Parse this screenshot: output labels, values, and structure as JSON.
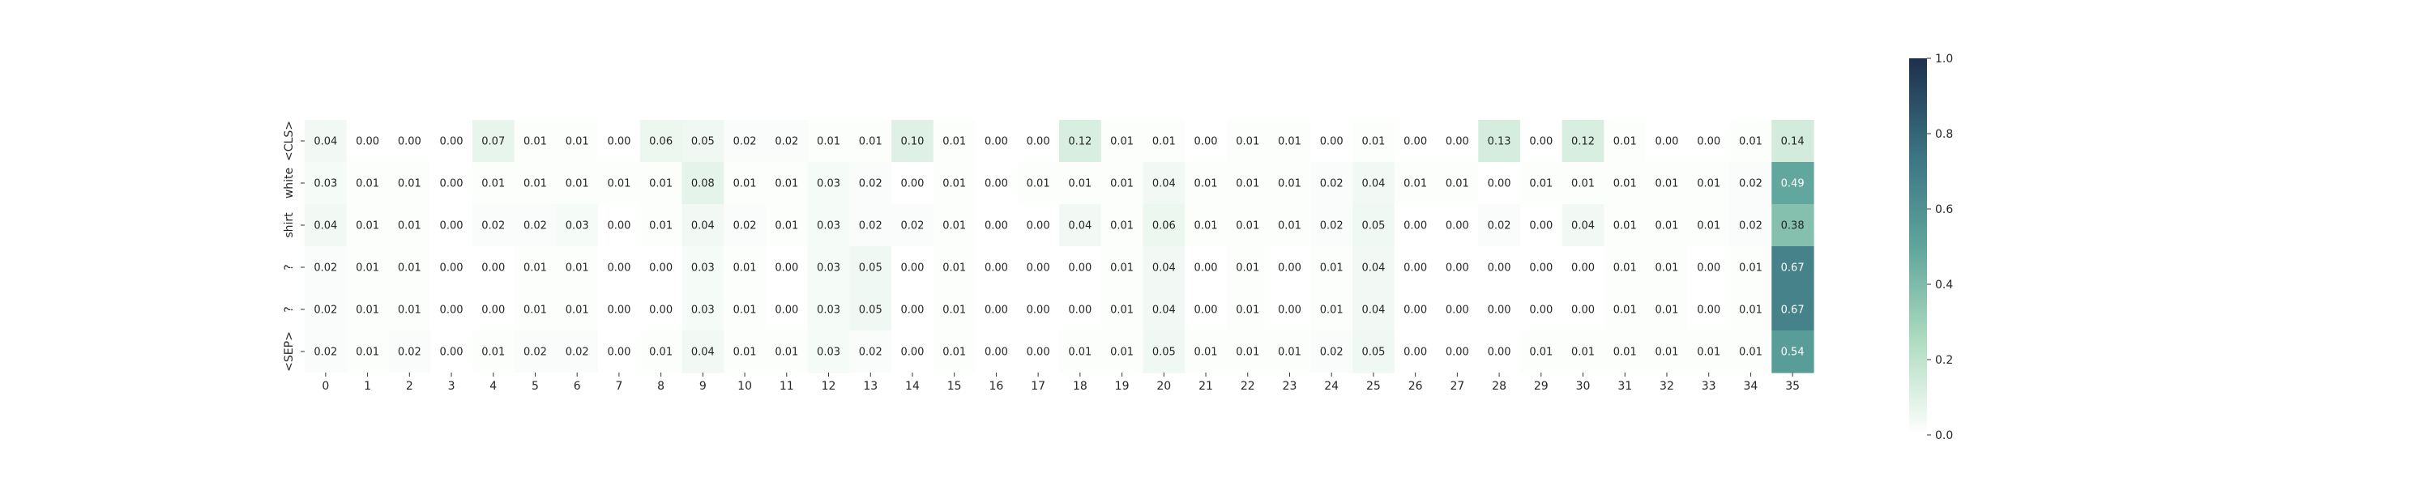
{
  "chart_data": {
    "type": "heatmap",
    "title": "",
    "xlabel": "",
    "ylabel": "",
    "y_labels": [
      "<CLS>",
      "white",
      "shirt",
      "?",
      "?",
      "<SEP>"
    ],
    "x_labels": [
      "0",
      "1",
      "2",
      "3",
      "4",
      "5",
      "6",
      "7",
      "8",
      "9",
      "10",
      "11",
      "12",
      "13",
      "14",
      "15",
      "16",
      "17",
      "18",
      "19",
      "20",
      "21",
      "22",
      "23",
      "24",
      "25",
      "26",
      "27",
      "28",
      "29",
      "30",
      "31",
      "32",
      "33",
      "34",
      "35"
    ],
    "values": [
      [
        0.04,
        0.0,
        0.0,
        0.0,
        0.07,
        0.01,
        0.01,
        0.0,
        0.06,
        0.05,
        0.02,
        0.02,
        0.01,
        0.01,
        0.1,
        0.01,
        0.0,
        0.0,
        0.12,
        0.01,
        0.01,
        0.0,
        0.01,
        0.01,
        0.0,
        0.01,
        0.0,
        0.0,
        0.13,
        0.0,
        0.12,
        0.01,
        0.0,
        0.0,
        0.01,
        0.14
      ],
      [
        0.03,
        0.01,
        0.01,
        0.0,
        0.01,
        0.01,
        0.01,
        0.01,
        0.01,
        0.08,
        0.01,
        0.01,
        0.03,
        0.02,
        0.0,
        0.01,
        0.0,
        0.01,
        0.01,
        0.01,
        0.04,
        0.01,
        0.01,
        0.01,
        0.02,
        0.04,
        0.01,
        0.01,
        0.0,
        0.01,
        0.01,
        0.01,
        0.01,
        0.01,
        0.02,
        0.49
      ],
      [
        0.04,
        0.01,
        0.01,
        0.0,
        0.02,
        0.02,
        0.03,
        0.0,
        0.01,
        0.04,
        0.02,
        0.01,
        0.03,
        0.02,
        0.02,
        0.01,
        0.0,
        0.0,
        0.04,
        0.01,
        0.06,
        0.01,
        0.01,
        0.01,
        0.02,
        0.05,
        0.0,
        0.0,
        0.02,
        0.0,
        0.04,
        0.01,
        0.01,
        0.01,
        0.02,
        0.38
      ],
      [
        0.02,
        0.01,
        0.01,
        0.0,
        0.0,
        0.01,
        0.01,
        0.0,
        0.0,
        0.03,
        0.01,
        0.0,
        0.03,
        0.05,
        0.0,
        0.01,
        0.0,
        0.0,
        0.0,
        0.01,
        0.04,
        0.0,
        0.01,
        0.0,
        0.01,
        0.04,
        0.0,
        0.0,
        0.0,
        0.0,
        0.0,
        0.01,
        0.01,
        0.0,
        0.01,
        0.67
      ],
      [
        0.02,
        0.01,
        0.01,
        0.0,
        0.0,
        0.01,
        0.01,
        0.0,
        0.0,
        0.03,
        0.01,
        0.0,
        0.03,
        0.05,
        0.0,
        0.01,
        0.0,
        0.0,
        0.0,
        0.01,
        0.04,
        0.0,
        0.01,
        0.0,
        0.01,
        0.04,
        0.0,
        0.0,
        0.0,
        0.0,
        0.0,
        0.01,
        0.01,
        0.0,
        0.01,
        0.67
      ],
      [
        0.02,
        0.01,
        0.02,
        0.0,
        0.01,
        0.02,
        0.02,
        0.0,
        0.01,
        0.04,
        0.01,
        0.01,
        0.03,
        0.02,
        0.0,
        0.01,
        0.0,
        0.0,
        0.01,
        0.01,
        0.05,
        0.01,
        0.01,
        0.01,
        0.02,
        0.05,
        0.0,
        0.0,
        0.0,
        0.01,
        0.01,
        0.01,
        0.01,
        0.01,
        0.01,
        0.54
      ]
    ],
    "value_range": [
      0.0,
      1.0
    ],
    "colorbar": {
      "ticks": [
        0.0,
        0.2,
        0.4,
        0.6,
        0.8,
        1.0
      ],
      "tick_labels": [
        "0.0",
        "0.2",
        "0.4",
        "0.6",
        "0.8",
        "1.0"
      ],
      "colors": [
        "#ffffff",
        "#aedcc0",
        "#5fa59c",
        "#3a7282",
        "#1e2f4e"
      ]
    },
    "grid": false,
    "legend": "colorbar-right"
  }
}
